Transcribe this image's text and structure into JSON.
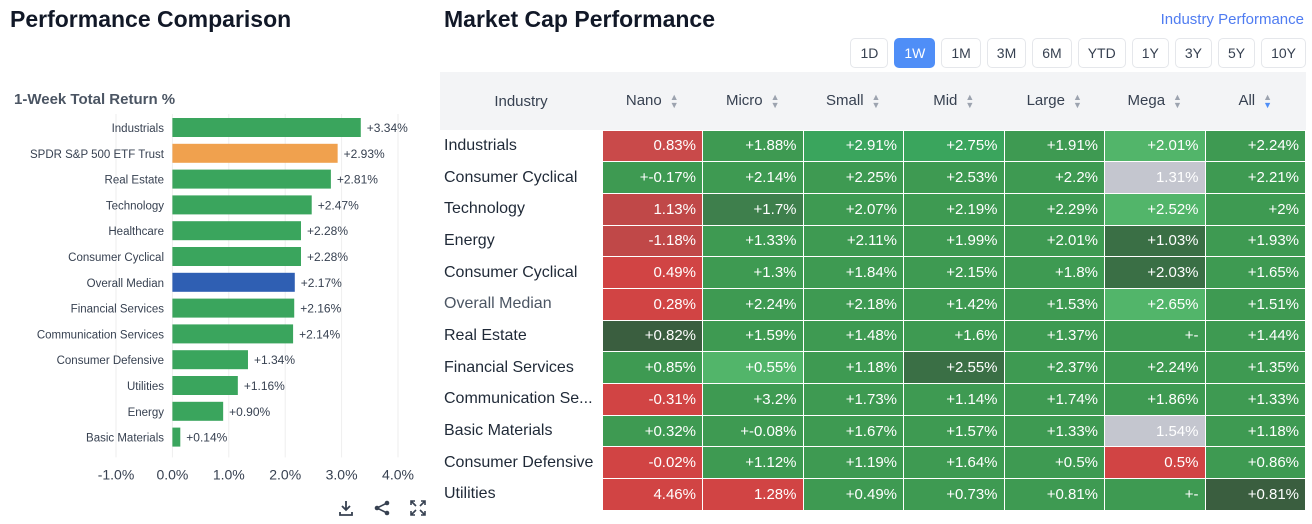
{
  "left": {
    "title": "Performance Comparison",
    "icons": [
      "download-icon",
      "share-icon",
      "expand-icon"
    ]
  },
  "chart_data": {
    "type": "bar",
    "orientation": "horizontal",
    "title": "1-Week Total Return %",
    "categories": [
      "Industrials",
      "SPDR S&P 500 ETF Trust",
      "Real Estate",
      "Technology",
      "Healthcare",
      "Consumer Cyclical",
      "Overall Median",
      "Financial Services",
      "Communication Services",
      "Consumer Defensive",
      "Utilities",
      "Energy",
      "Basic Materials"
    ],
    "values": [
      3.34,
      2.93,
      2.81,
      2.47,
      2.28,
      2.28,
      2.17,
      2.16,
      2.14,
      1.34,
      1.16,
      0.9,
      0.14
    ],
    "value_labels": [
      "+3.34%",
      "+2.93%",
      "+2.81%",
      "+2.47%",
      "+2.28%",
      "+2.28%",
      "+2.17%",
      "+2.16%",
      "+2.14%",
      "+1.34%",
      "+1.16%",
      "+0.90%",
      "+0.14%"
    ],
    "colors": [
      "#3aa55d",
      "#f0a14e",
      "#3aa55d",
      "#3aa55d",
      "#3aa55d",
      "#3aa55d",
      "#2f5fb3",
      "#3aa55d",
      "#3aa55d",
      "#3aa55d",
      "#3aa55d",
      "#3aa55d",
      "#3aa55d"
    ],
    "xlim": [
      -1.0,
      4.0
    ],
    "xticks": [
      -1.0,
      0.0,
      1.0,
      2.0,
      3.0,
      4.0
    ],
    "xtick_labels": [
      "-1.0%",
      "0.0%",
      "1.0%",
      "2.0%",
      "3.0%",
      "4.0%"
    ],
    "grid": true
  },
  "right": {
    "title": "Market Cap Performance",
    "link": "Industry Performance",
    "periods": [
      "1D",
      "1W",
      "1M",
      "3M",
      "6M",
      "YTD",
      "1Y",
      "3Y",
      "5Y",
      "10Y"
    ],
    "active_period": "1W",
    "columns": [
      "Industry",
      "Nano",
      "Micro",
      "Small",
      "Mid",
      "Large",
      "Mega",
      "All"
    ],
    "rows": [
      {
        "name": "Industrials",
        "cells": [
          "0.83%",
          "+1.88%",
          "+2.91%",
          "+2.75%",
          "+1.91%",
          "+2.01%",
          "+2.24%"
        ],
        "colors": [
          "#c94a4a",
          "#3e9a52",
          "#3aa55d",
          "#3aa55d",
          "#3e9a52",
          "#52b56a",
          "#3e9a52"
        ]
      },
      {
        "name": "Consumer Cyclical",
        "cells": [
          "+-0.17%",
          "+2.14%",
          "+2.25%",
          "+2.53%",
          "+2.2%",
          "1.31%",
          "+2.21%"
        ],
        "colors": [
          "#3e9a52",
          "#3e9a52",
          "#3e9a52",
          "#3e9a52",
          "#3e9a52",
          "#c4c6cf",
          "#3e9a52"
        ]
      },
      {
        "name": "Technology",
        "cells": [
          "1.13%",
          "+1.7%",
          "+2.07%",
          "+2.19%",
          "+2.29%",
          "+2.52%",
          "+2%"
        ],
        "colors": [
          "#c04848",
          "#3e7f4c",
          "#3e9a52",
          "#3e9a52",
          "#3e9a52",
          "#52b56a",
          "#3e9a52"
        ]
      },
      {
        "name": "Energy",
        "cells": [
          "-1.18%",
          "+1.33%",
          "+2.11%",
          "+1.99%",
          "+2.01%",
          "+1.03%",
          "+1.93%"
        ],
        "colors": [
          "#c04848",
          "#3e9a52",
          "#3e9a52",
          "#3e9a52",
          "#3e9a52",
          "#3a6f45",
          "#3e9a52"
        ]
      },
      {
        "name": "Consumer Cyclical",
        "cells": [
          "0.49%",
          "+1.3%",
          "+1.84%",
          "+2.15%",
          "+1.8%",
          "+2.03%",
          "+1.65%"
        ],
        "colors": [
          "#d14444",
          "#3e9a52",
          "#3e9a52",
          "#3e9a52",
          "#3e9a52",
          "#3a6f45",
          "#3e9a52"
        ]
      },
      {
        "name": "Overall Median",
        "cells": [
          "0.28%",
          "+2.24%",
          "+2.18%",
          "+1.42%",
          "+1.53%",
          "+2.65%",
          "+1.51%"
        ],
        "colors": [
          "#d14444",
          "#3e9a52",
          "#3e9a52",
          "#3e9a52",
          "#3e9a52",
          "#52b56a",
          "#3e9a52"
        ]
      },
      {
        "name": "Real Estate",
        "cells": [
          "+0.82%",
          "+1.59%",
          "+1.48%",
          "+1.6%",
          "+1.37%",
          "+-",
          "+1.44%"
        ],
        "colors": [
          "#3a5e3f",
          "#3e9a52",
          "#3e9a52",
          "#3e9a52",
          "#3e9a52",
          "#3e9a52",
          "#3e9a52"
        ]
      },
      {
        "name": "Financial Services",
        "cells": [
          "+0.85%",
          "+0.55%",
          "+1.18%",
          "+2.55%",
          "+2.37%",
          "+2.24%",
          "+1.35%"
        ],
        "colors": [
          "#3e9a52",
          "#52b56a",
          "#3e9a52",
          "#3a6f45",
          "#3e9a52",
          "#3e9a52",
          "#3e9a52"
        ]
      },
      {
        "name": "Communication Se...",
        "cells": [
          "-0.31%",
          "+3.2%",
          "+1.73%",
          "+1.14%",
          "+1.74%",
          "+1.86%",
          "+1.33%"
        ],
        "colors": [
          "#d14444",
          "#3e9a52",
          "#3e9a52",
          "#3e9a52",
          "#3e9a52",
          "#3e9a52",
          "#3e9a52"
        ]
      },
      {
        "name": "Basic Materials",
        "cells": [
          "+0.32%",
          "+-0.08%",
          "+1.67%",
          "+1.57%",
          "+1.33%",
          "1.54%",
          "+1.18%"
        ],
        "colors": [
          "#3e9a52",
          "#3e9a52",
          "#3e9a52",
          "#3e9a52",
          "#3e9a52",
          "#c4c6cf",
          "#3e9a52"
        ]
      },
      {
        "name": "Consumer Defensive",
        "cells": [
          "-0.02%",
          "+1.12%",
          "+1.19%",
          "+1.64%",
          "+0.5%",
          "0.5%",
          "+0.86%"
        ],
        "colors": [
          "#d14444",
          "#3e9a52",
          "#3e9a52",
          "#3e9a52",
          "#3e9a52",
          "#d14444",
          "#3e9a52"
        ]
      },
      {
        "name": "Utilities",
        "cells": [
          "4.46%",
          "1.28%",
          "+0.49%",
          "+0.73%",
          "+0.81%",
          "+-",
          "+0.81%"
        ],
        "colors": [
          "#d14444",
          "#d14444",
          "#3e9a52",
          "#3e9a52",
          "#3e9a52",
          "#3e9a52",
          "#3a5e3f"
        ]
      }
    ]
  }
}
